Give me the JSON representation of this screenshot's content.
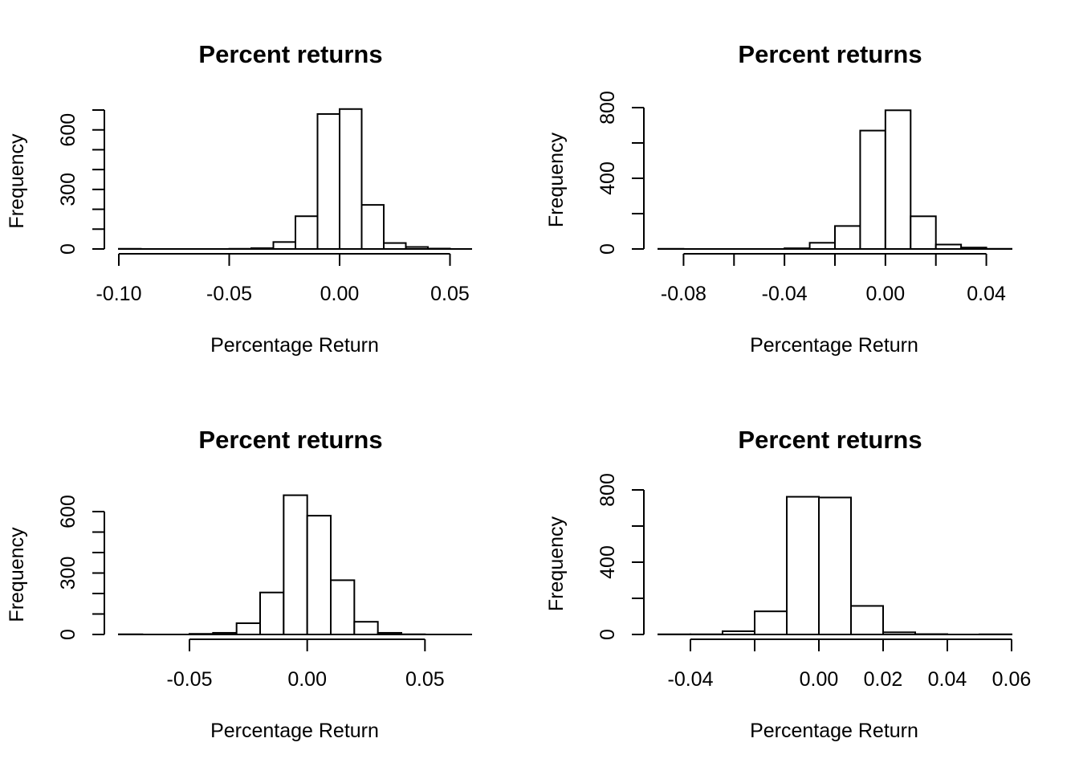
{
  "chart_data": [
    {
      "type": "bar",
      "title": "Percent returns",
      "xlabel": "Percentage Return",
      "ylabel": "Frequency",
      "bin_edges": [
        -0.1,
        -0.09,
        -0.08,
        -0.07,
        -0.06,
        -0.05,
        -0.04,
        -0.03,
        -0.02,
        -0.01,
        0.0,
        0.01,
        0.02,
        0.03,
        0.04,
        0.05,
        0.06
      ],
      "values": [
        1,
        0,
        0,
        0,
        0,
        1,
        4,
        35,
        165,
        680,
        705,
        222,
        30,
        10,
        2,
        0
      ],
      "xticks": [
        -0.1,
        -0.05,
        0.0,
        0.05
      ],
      "xtick_labels": [
        "-0.10",
        "-0.05",
        "0.00",
        "0.05"
      ],
      "yticks": [
        0,
        100,
        200,
        300,
        400,
        500,
        600,
        700
      ],
      "ytick_labels": [
        "0",
        "",
        "",
        "300",
        "",
        "",
        "600",
        ""
      ],
      "ylim": [
        0,
        700
      ],
      "grid": false
    },
    {
      "type": "bar",
      "title": "Percent returns",
      "xlabel": "Percentage Return",
      "ylabel": "Frequency",
      "bin_edges": [
        -0.09,
        -0.08,
        -0.07,
        -0.06,
        -0.05,
        -0.04,
        -0.03,
        -0.02,
        -0.01,
        0.0,
        0.01,
        0.02,
        0.03,
        0.04,
        0.05
      ],
      "values": [
        1,
        0,
        0,
        0,
        0,
        4,
        35,
        130,
        670,
        785,
        185,
        25,
        8,
        1
      ],
      "xticks": [
        -0.08,
        -0.06,
        -0.04,
        -0.02,
        0.0,
        0.02,
        0.04
      ],
      "xtick_labels": [
        "-0.08",
        "",
        "-0.04",
        "",
        "0.00",
        "",
        "0.04"
      ],
      "yticks": [
        0,
        200,
        400,
        600,
        800
      ],
      "ytick_labels": [
        "0",
        "",
        "400",
        "",
        "800"
      ],
      "ylim": [
        0,
        800
      ],
      "grid": false
    },
    {
      "type": "bar",
      "title": "Percent returns",
      "xlabel": "Percentage Return",
      "ylabel": "Frequency",
      "bin_edges": [
        -0.08,
        -0.07,
        -0.06,
        -0.05,
        -0.04,
        -0.03,
        -0.02,
        -0.01,
        0.0,
        0.01,
        0.02,
        0.03,
        0.04,
        0.05,
        0.06,
        0.07
      ],
      "values": [
        1,
        0,
        0,
        3,
        8,
        55,
        205,
        680,
        580,
        265,
        62,
        8,
        1,
        0,
        0
      ],
      "xticks": [
        -0.05,
        0.0,
        0.05
      ],
      "xtick_labels": [
        "-0.05",
        "0.00",
        "0.05"
      ],
      "yticks": [
        0,
        100,
        200,
        300,
        400,
        500,
        600
      ],
      "ytick_labels": [
        "0",
        "",
        "",
        "300",
        "",
        "",
        "600"
      ],
      "ylim": [
        0,
        600
      ],
      "grid": false
    },
    {
      "type": "bar",
      "title": "Percent returns",
      "xlabel": "Percentage Return",
      "ylabel": "Frequency",
      "bin_edges": [
        -0.05,
        -0.04,
        -0.03,
        -0.02,
        -0.01,
        0.0,
        0.01,
        0.02,
        0.03,
        0.04,
        0.05,
        0.06
      ],
      "values": [
        1,
        1,
        18,
        128,
        762,
        758,
        158,
        12,
        2,
        0,
        1
      ],
      "xticks": [
        -0.04,
        -0.02,
        0.0,
        0.02,
        0.04,
        0.06
      ],
      "xtick_labels": [
        "-0.04",
        "",
        "0.00",
        "0.02",
        "0.04",
        "0.06"
      ],
      "yticks": [
        0,
        200,
        400,
        600,
        800
      ],
      "ytick_labels": [
        "0",
        "",
        "400",
        "",
        "800"
      ],
      "ylim": [
        0,
        800
      ],
      "grid": false
    }
  ]
}
